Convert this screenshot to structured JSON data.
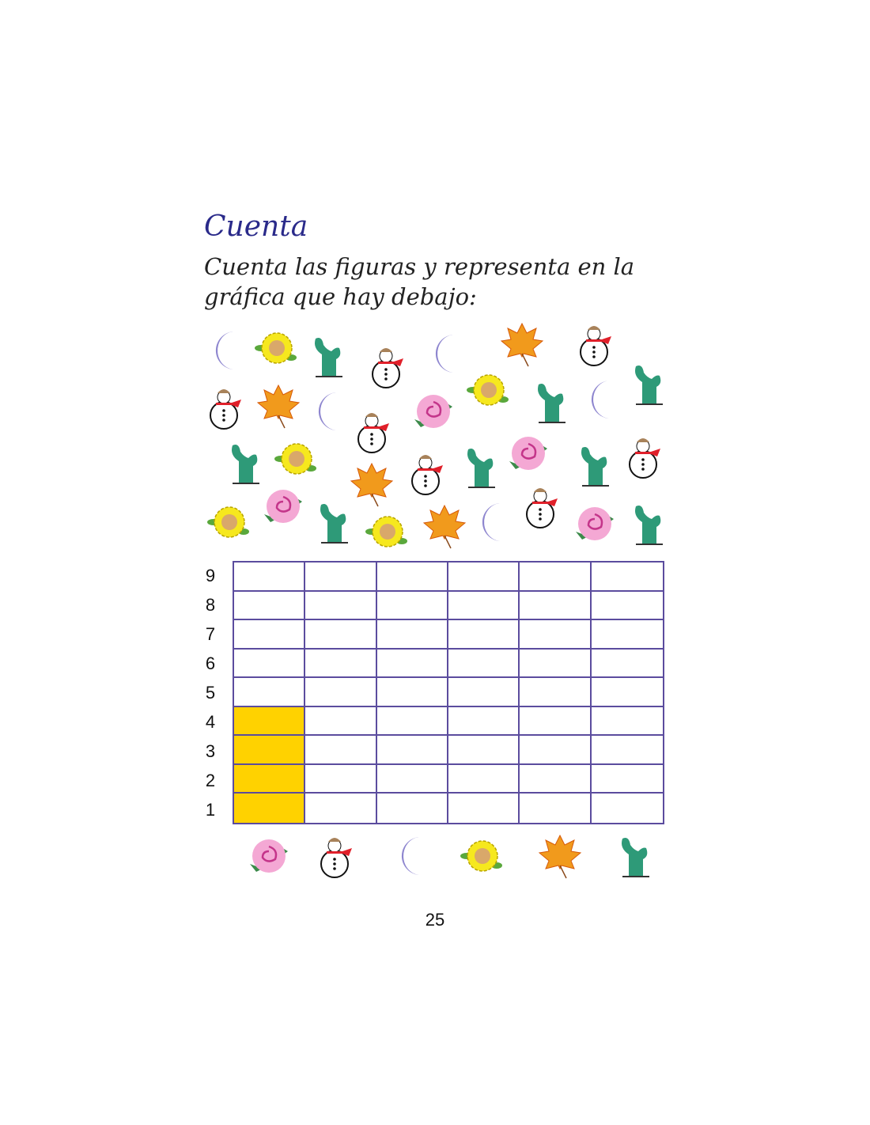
{
  "title": "Cuenta",
  "instruction": "Cuenta las figuras y representa en la gráfica que hay debajo:",
  "page_number": "25",
  "colors": {
    "title": "#2a2a8a",
    "grid": "#5b4c9e",
    "fill": "#ffd200"
  },
  "figures": [
    "rose-icon",
    "snowman-icon",
    "moon-icon",
    "sunflower-icon",
    "leaf-icon",
    "cactus-icon"
  ],
  "chart_data": {
    "type": "bar",
    "categories": [
      "rose",
      "snowman",
      "moon",
      "sunflower",
      "leaf",
      "cactus"
    ],
    "values": [
      4,
      0,
      0,
      0,
      0,
      0
    ],
    "y_ticks": [
      "1",
      "2",
      "3",
      "4",
      "5",
      "6",
      "7",
      "8",
      "9"
    ],
    "ylim": [
      0,
      9
    ],
    "grid": true
  }
}
